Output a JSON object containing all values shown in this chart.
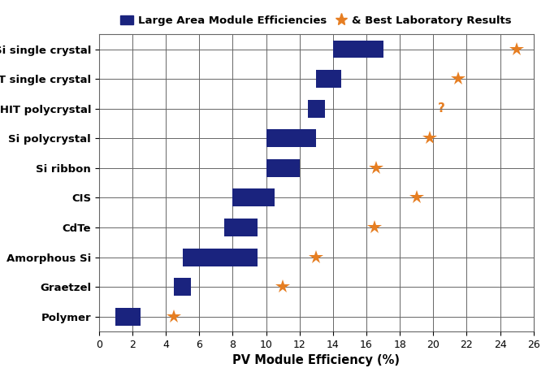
{
  "categories": [
    "Si single crystal",
    "Si HIT single crystal",
    "Si HIT polycrystal",
    "Si polycrystal",
    "Si ribbon",
    "CIS",
    "CdTe",
    "Amorphous Si",
    "Graetzel",
    "Polymer"
  ],
  "bar_ranges": [
    [
      14.0,
      17.0
    ],
    [
      13.0,
      14.5
    ],
    [
      12.5,
      13.5
    ],
    [
      10.0,
      13.0
    ],
    [
      10.0,
      12.0
    ],
    [
      8.0,
      10.5
    ],
    [
      7.5,
      9.5
    ],
    [
      5.0,
      9.5
    ],
    [
      4.5,
      5.5
    ],
    [
      1.0,
      2.5
    ]
  ],
  "star_x": [
    25.0,
    21.5,
    null,
    19.8,
    16.6,
    19.0,
    16.5,
    13.0,
    11.0,
    4.5
  ],
  "question_mark_x": [
    null,
    null,
    20.5,
    null,
    null,
    null,
    null,
    null,
    null,
    null
  ],
  "bar_color": "#1a237e",
  "star_color": "#e67e22",
  "xlim": [
    0,
    26
  ],
  "xticks": [
    0,
    2,
    4,
    6,
    8,
    10,
    12,
    14,
    16,
    18,
    20,
    22,
    24,
    26
  ],
  "xlabel": "PV Module Efficiency (%)",
  "bar_height": 0.6,
  "grid_color": "#666666",
  "background_color": "#ffffff",
  "figsize": [
    6.77,
    4.69
  ],
  "dpi": 100
}
